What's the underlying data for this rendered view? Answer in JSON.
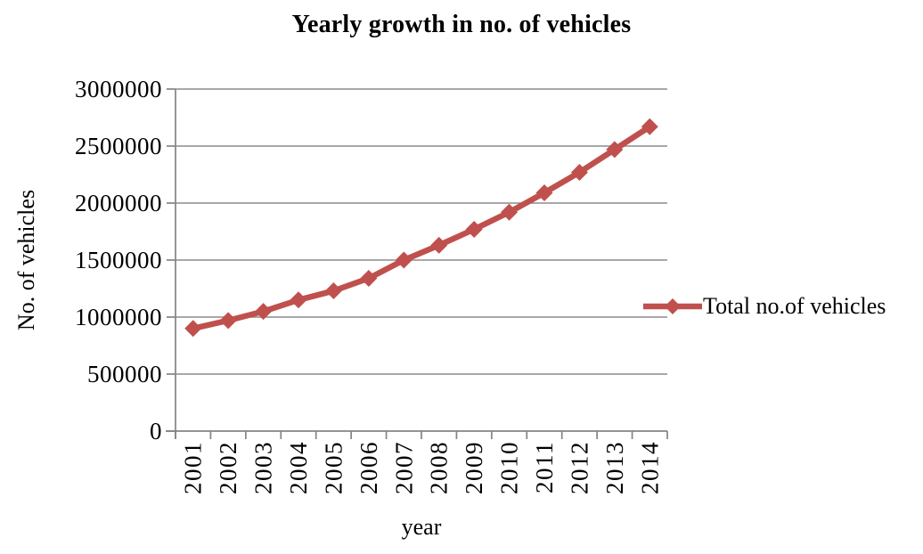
{
  "chart_data": {
    "type": "line",
    "title": "Yearly growth in no. of vehicles",
    "xlabel": "year",
    "ylabel": "No. of vehicles",
    "categories": [
      "2001",
      "2002",
      "2003",
      "2004",
      "2005",
      "2006",
      "2007",
      "2008",
      "2009",
      "2010",
      "2011",
      "2012",
      "2013",
      "2014"
    ],
    "series": [
      {
        "name": "Total no.of vehicles",
        "marker": "diamond",
        "color": "#C0504D",
        "values": [
          900000,
          970000,
          1050000,
          1150000,
          1230000,
          1340000,
          1500000,
          1630000,
          1770000,
          1920000,
          2090000,
          2270000,
          2470000,
          2670000
        ]
      }
    ],
    "ylim": [
      0,
      3000000
    ],
    "ytick_interval": 500000,
    "ytick_labels": [
      "0",
      "500000",
      "1000000",
      "1500000",
      "2000000",
      "2500000",
      "3000000"
    ],
    "grid": "horizontal",
    "legend_position": "right-middle",
    "colors": {
      "axis": "#848484",
      "grid": "#8c8c8c",
      "text": "#000000",
      "background": "#ffffff"
    }
  }
}
